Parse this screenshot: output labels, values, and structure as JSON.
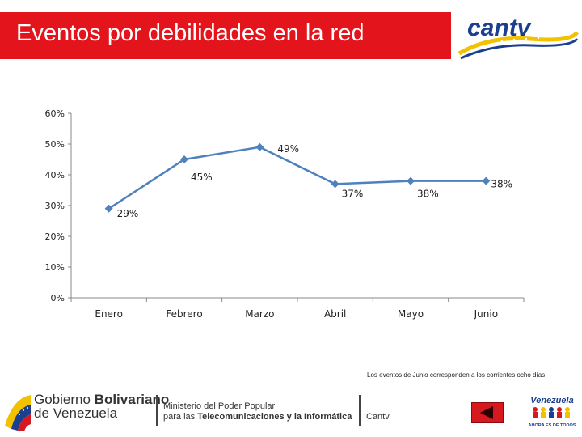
{
  "header": {
    "title": "Eventos por debilidades en la red",
    "logo_text": "cantv"
  },
  "colors": {
    "title_bar": "#e3141b",
    "series": "#4f81bd",
    "logo_blue": "#1b3e8f",
    "logo_yellow": "#f2c200"
  },
  "chart_data": {
    "type": "line",
    "categories": [
      "Enero",
      "Febrero",
      "Marzo",
      "Abril",
      "Mayo",
      "Junio"
    ],
    "values": [
      0.29,
      0.45,
      0.49,
      0.37,
      0.38,
      0.38
    ],
    "data_labels": [
      "29%",
      "45%",
      "49%",
      "37%",
      "38%",
      "38%"
    ],
    "y_ticks": [
      "0%",
      "10%",
      "20%",
      "30%",
      "40%",
      "50%",
      "60%"
    ],
    "ylim": [
      0,
      0.6
    ],
    "grid": false,
    "marker": "diamond-icon"
  },
  "footnote": "Los eventos de Junio corresponden a los corrientes ocho días",
  "footer": {
    "gov_line1_a": "Gobierno ",
    "gov_line1_b": "Bolivariano",
    "gov_line2": "de Venezuela",
    "ministry_line1": "Ministerio del Poder Popular",
    "ministry_line2_a": "para las ",
    "ministry_line2_b": "Telecomunicaciones y la Informática",
    "cantv": "Cantv",
    "venezuela_title": "Venezuela",
    "venezuela_tagline": "AHORA ES DE TODOS",
    "back_icon": "back-arrow-icon"
  }
}
